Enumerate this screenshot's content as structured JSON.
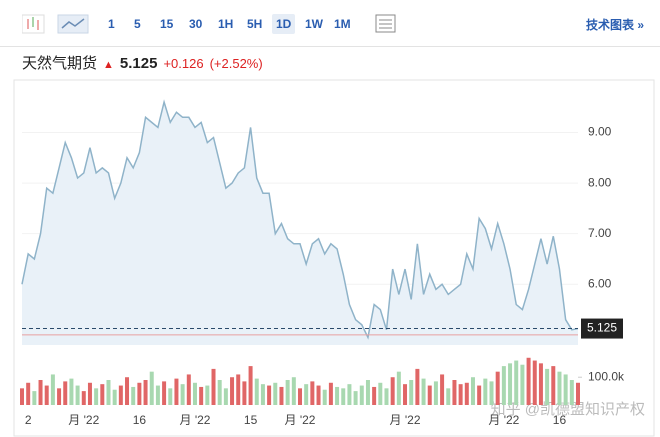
{
  "toolbar": {
    "intervals": [
      "1",
      "5",
      "15",
      "30",
      "1H",
      "5H",
      "1D",
      "1W",
      "1M"
    ],
    "active": 6,
    "right_link": "技术图表 »"
  },
  "header": {
    "name": "天然气期货",
    "price": "5.125",
    "change": "+0.126",
    "change_pct": "(+2.52%)"
  },
  "watermark": "知乎 @凯德盟知识产权",
  "chart_data": {
    "type": "area",
    "categories": [
      null,
      "2",
      null,
      null,
      null,
      null,
      null,
      null,
      null,
      null,
      "月 '22",
      null,
      null,
      null,
      null,
      null,
      null,
      null,
      null,
      "16",
      null,
      null,
      null,
      null,
      null,
      null,
      null,
      null,
      "月 '22",
      null,
      null,
      null,
      null,
      null,
      null,
      null,
      null,
      "15",
      null,
      null,
      null,
      null,
      null,
      null,
      null,
      "月 '22",
      null,
      null,
      null,
      null,
      null,
      null,
      null,
      null,
      null,
      null,
      null,
      null,
      null,
      null,
      null,
      null,
      "月 '22",
      null,
      null,
      null,
      null,
      null,
      null,
      null,
      null,
      null,
      null,
      null,
      null,
      null,
      null,
      null,
      "月 '22",
      null,
      null,
      null,
      null,
      null,
      null,
      null,
      null,
      "16",
      null,
      null,
      null
    ],
    "series": [
      {
        "name": "价格",
        "color": "#8fb3c9",
        "fill": "#e9f1f8",
        "values": [
          6.0,
          6.6,
          6.5,
          7.0,
          7.9,
          7.8,
          8.3,
          8.8,
          8.5,
          8.1,
          8.2,
          8.7,
          8.2,
          8.3,
          8.2,
          7.7,
          8.0,
          8.5,
          8.3,
          8.6,
          9.3,
          9.2,
          9.1,
          9.6,
          9.2,
          9.4,
          9.3,
          9.3,
          9.1,
          9.2,
          8.8,
          8.9,
          8.4,
          7.9,
          8.0,
          8.2,
          8.3,
          9.1,
          8.1,
          7.8,
          7.8,
          7.0,
          7.2,
          6.9,
          6.8,
          6.8,
          6.4,
          6.8,
          6.9,
          6.6,
          6.8,
          6.7,
          6.2,
          5.6,
          5.3,
          5.2,
          4.95,
          5.6,
          5.5,
          5.1,
          6.3,
          5.8,
          6.3,
          5.7,
          6.8,
          5.8,
          6.2,
          5.9,
          6.0,
          5.8,
          5.9,
          6.0,
          6.6,
          6.3,
          7.3,
          7.1,
          6.7,
          7.2,
          6.8,
          6.3,
          5.6,
          5.5,
          5.9,
          6.4,
          6.9,
          6.4,
          6.95,
          6.3,
          5.3,
          5.1,
          5.125
        ]
      },
      {
        "name": "成交量",
        "axis": "y2",
        "up_color": "#e06666",
        "down_color": "#a8d8b0",
        "values": [
          60000,
          80000,
          50000,
          90000,
          70000,
          110000,
          60000,
          85000,
          95000,
          70000,
          50000,
          80000,
          60000,
          75000,
          90000,
          55000,
          70000,
          100000,
          65000,
          80000,
          90000,
          120000,
          70000,
          85000,
          60000,
          95000,
          75000,
          110000,
          80000,
          65000,
          70000,
          130000,
          90000,
          60000,
          100000,
          110000,
          85000,
          140000,
          95000,
          75000,
          70000,
          80000,
          65000,
          90000,
          100000,
          60000,
          75000,
          85000,
          70000,
          55000,
          80000,
          65000,
          60000,
          75000,
          50000,
          70000,
          90000,
          65000,
          80000,
          60000,
          100000,
          120000,
          75000,
          90000,
          130000,
          95000,
          70000,
          85000,
          110000,
          60000,
          90000,
          75000,
          80000,
          100000,
          70000,
          95000,
          85000,
          120000,
          140000,
          150000,
          160000,
          145000,
          170000,
          160000,
          150000,
          130000,
          140000,
          120000,
          110000,
          90000,
          80000
        ]
      }
    ],
    "ylim": [
      4.8,
      9.8
    ],
    "yticks": [
      {
        "value": 6,
        "label": "6.00"
      },
      {
        "value": 7,
        "label": "7.00"
      },
      {
        "value": 8,
        "label": "8.00"
      },
      {
        "value": 9,
        "label": "9.00"
      }
    ],
    "y2lim": [
      0,
      180000
    ],
    "y2ticks": [
      {
        "value": 100000,
        "label": "100.0k"
      }
    ],
    "last": 5.125,
    "last_label": "5.125",
    "prev_close": 4.999
  }
}
